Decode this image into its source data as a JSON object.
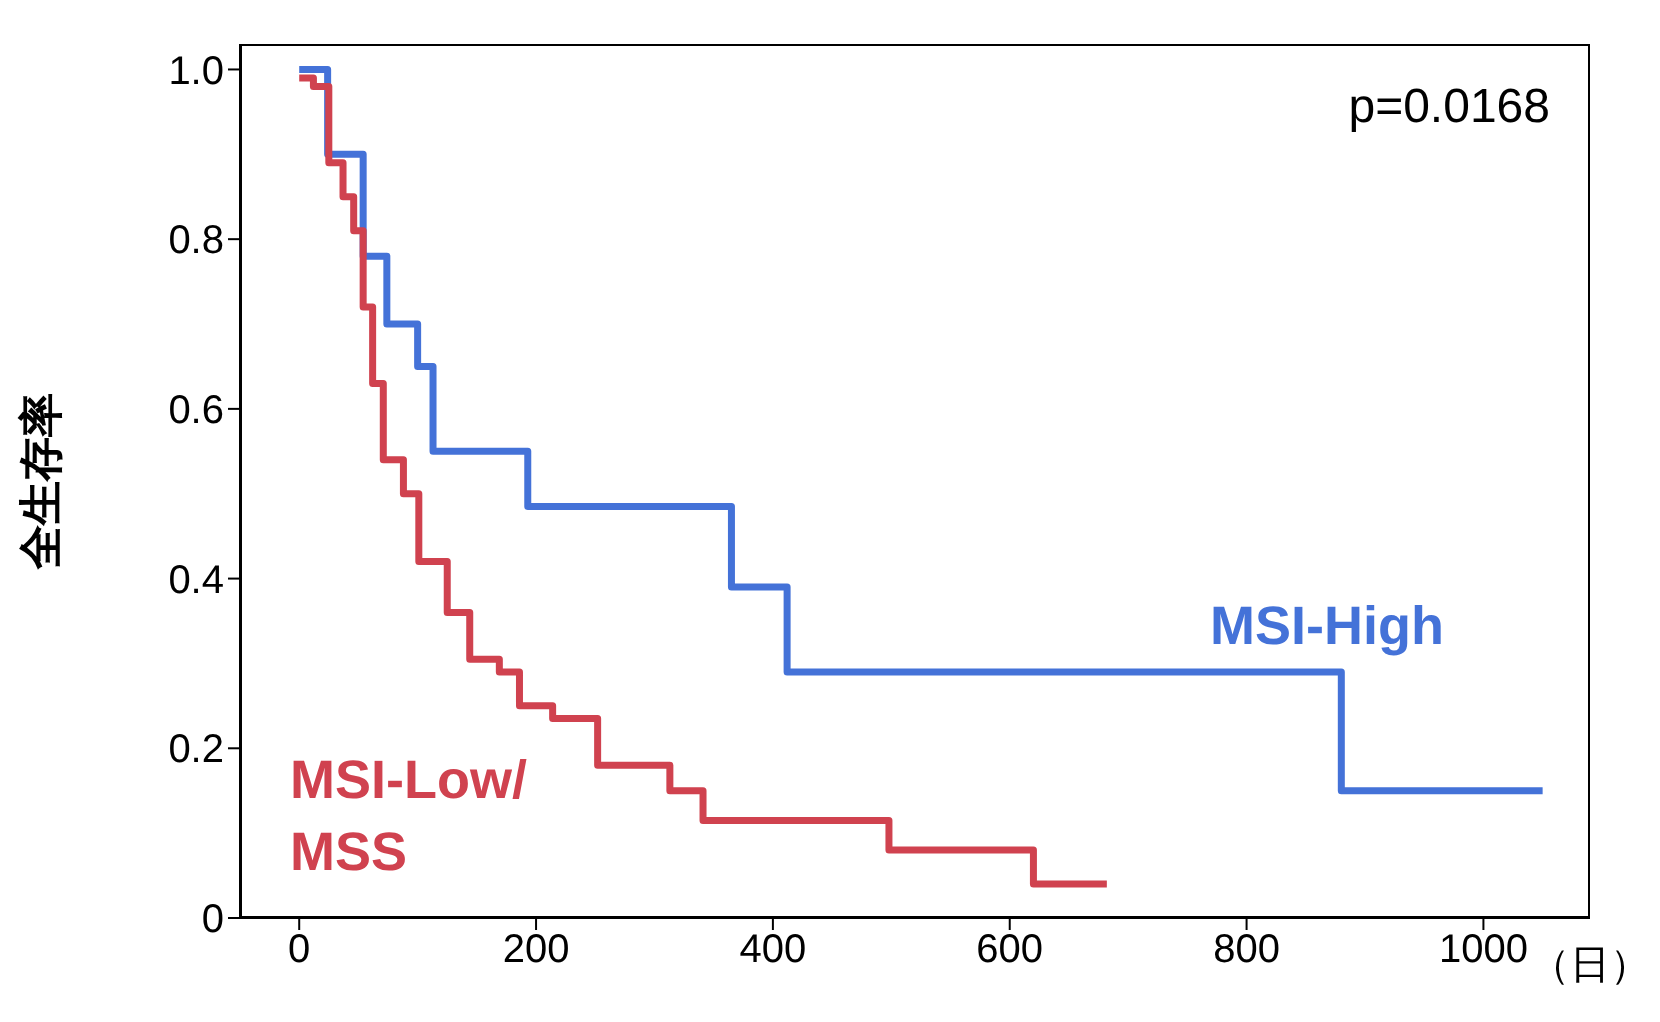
{
  "chart_data": {
    "type": "step",
    "xlabel": "（日）",
    "ylabel": "全生存率",
    "annotations": [
      "p=0.0168"
    ],
    "xlim": [
      -50,
      1090
    ],
    "xticks": [
      0,
      200,
      400,
      600,
      800,
      1000
    ],
    "ylim": [
      0,
      1.03
    ],
    "yticks": [
      0,
      {
        "value": 0.2,
        "label": "0.2"
      },
      {
        "value": 0.4,
        "label": "0.4"
      },
      {
        "value": 0.6,
        "label": "0.6"
      },
      {
        "value": 0.8,
        "label": "0.8"
      },
      {
        "value": 1,
        "label": "1.0"
      }
    ],
    "series": [
      {
        "name": "MSI-High",
        "color": "#4472d8",
        "x": [
          0,
          24,
          54,
          74,
          100,
          113,
          193,
          365,
          412,
          880,
          1050
        ],
        "values": [
          1.0,
          0.9,
          0.78,
          0.7,
          0.65,
          0.55,
          0.485,
          0.39,
          0.29,
          0.15,
          0.15
        ]
      },
      {
        "name": "MSI-Low/MSS",
        "color": "#d0424f",
        "x": [
          0,
          12,
          25,
          37,
          46,
          54,
          62,
          71,
          88,
          101,
          125,
          144,
          169,
          186,
          214,
          252,
          313,
          341,
          498,
          620,
          682
        ],
        "values": [
          0.99,
          0.98,
          0.89,
          0.85,
          0.81,
          0.72,
          0.63,
          0.54,
          0.5,
          0.42,
          0.36,
          0.305,
          0.29,
          0.25,
          0.235,
          0.18,
          0.15,
          0.115,
          0.08,
          0.04,
          0.04
        ]
      }
    ]
  }
}
